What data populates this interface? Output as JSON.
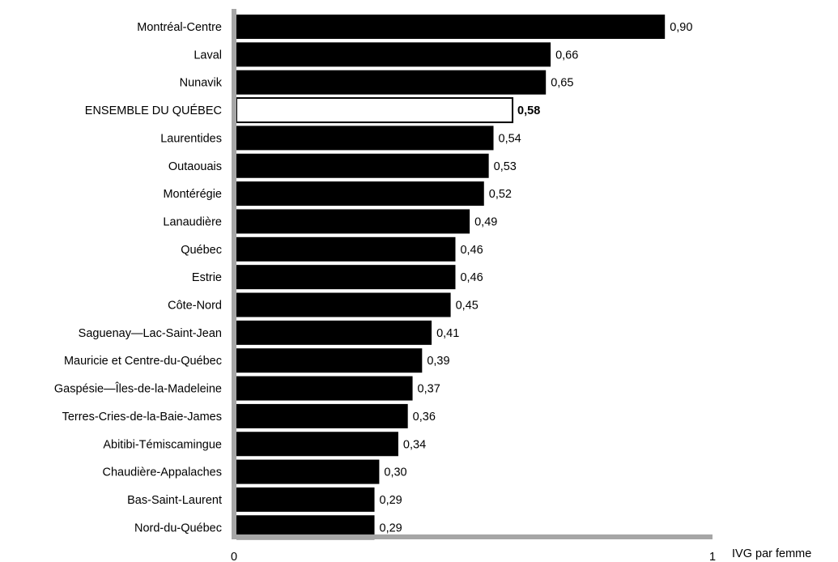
{
  "chart_data": {
    "type": "bar",
    "orientation": "horizontal",
    "categories": [
      "Montréal-Centre",
      "Laval",
      "Nunavik",
      "ENSEMBLE DU QUÉBEC",
      "Laurentides",
      "Outaouais",
      "Montérégie",
      "Lanaudière",
      "Québec",
      "Estrie",
      "Côte-Nord",
      "Saguenay—Lac-Saint-Jean",
      "Mauricie et Centre-du-Québec",
      "Gaspésie—Îles-de-la-Madeleine",
      "Terres-Cries-de-la-Baie-James",
      "Abitibi-Témiscamingue",
      "Chaudière-Appalaches",
      "Bas-Saint-Laurent",
      "Nord-du-Québec"
    ],
    "values": [
      0.9,
      0.66,
      0.65,
      0.58,
      0.54,
      0.53,
      0.52,
      0.49,
      0.46,
      0.46,
      0.45,
      0.41,
      0.39,
      0.37,
      0.36,
      0.34,
      0.3,
      0.29,
      0.29
    ],
    "value_labels": [
      "0,90",
      "0,66",
      "0,65",
      "0,58",
      "0,54",
      "0,53",
      "0,52",
      "0,49",
      "0,46",
      "0,46",
      "0,45",
      "0,41",
      "0,39",
      "0,37",
      "0,36",
      "0,34",
      "0,30",
      "0,29",
      "0,29"
    ],
    "highlight_category": "ENSEMBLE DU QUÉBEC",
    "xlim": [
      0,
      1
    ],
    "x_tick_labels": [
      "0",
      "1"
    ],
    "xlabel": "IVG  par femme",
    "title": "",
    "ylabel": "",
    "colors": {
      "bar": "#000000",
      "highlight_fill": "#ffffff",
      "highlight_stroke": "#000000",
      "axis": "#a6a6a6"
    }
  }
}
